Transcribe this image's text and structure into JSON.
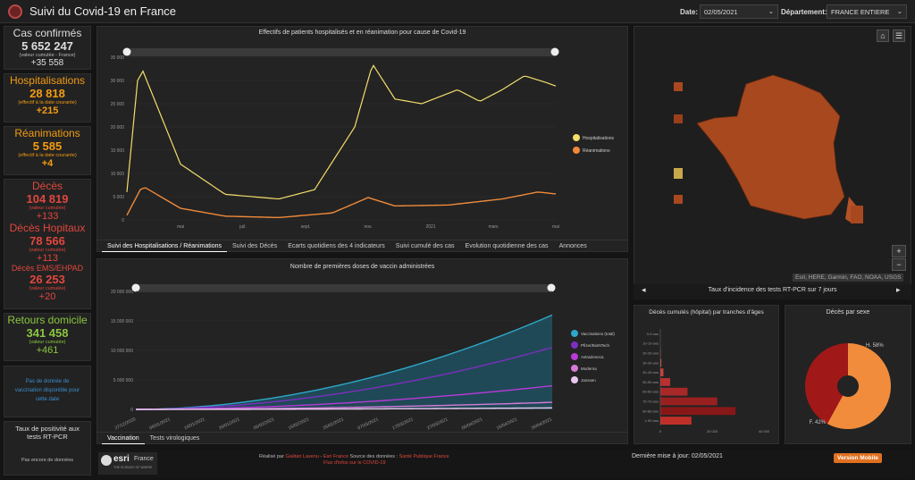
{
  "header": {
    "title": "Suivi du Covid-19 en France",
    "date_label": "Date:",
    "date_value": "02/05/2021",
    "dept_label": "Département:",
    "dept_value": "FRANCE ENTIERE"
  },
  "stats": {
    "cases": {
      "title": "Cas confirmés",
      "value": "5 652 247",
      "note": "(valeur cumulée - France)",
      "delta": "+35 558"
    },
    "hosp": {
      "title": "Hospitalisations",
      "value": "28 818",
      "note": "(effectif à la date courante)",
      "delta": "+215"
    },
    "rea": {
      "title": "Réanimations",
      "value": "5 585",
      "note": "(effectif à la date courante)",
      "delta": "+4"
    },
    "deaths": {
      "title": "Décès",
      "value": "104 819",
      "note": "(valeur cumulée)",
      "delta": "+133",
      "hosp_title": "Décès Hopitaux",
      "hosp_value": "78 566",
      "hosp_note": "(valeur cumulée)",
      "hosp_delta": "+113",
      "ems_title": "Décès EMS/EHPAD",
      "ems_value": "26 253",
      "ems_note": "(valeur cumulée)",
      "ems_delta": "+20"
    },
    "home": {
      "title": "Retours domicile",
      "value": "341 458",
      "note": "(valeur cumulée)",
      "delta": "+461"
    },
    "vacc_note": "Pas de donnée de vaccination disponible pour cette date",
    "posit_title": "Taux de positivité aux tests RT-PCR",
    "posit_note": "Pas encore de données"
  },
  "chart1": {
    "title": "Effectifs de patients hospitalisés et en réanimation pour cause de Covid-19",
    "legend": [
      "Hospitalisations",
      "Réanimations"
    ],
    "colors": [
      "#f4dd6a",
      "#f08a3a"
    ],
    "yticks": [
      "35 000",
      "30 000",
      "25 000",
      "20 000",
      "15 000",
      "10 000",
      "5 000",
      "0"
    ],
    "xticks": [
      "mai",
      "juil.",
      "sept.",
      "nov.",
      "2021",
      "mars",
      "mai"
    ]
  },
  "tabs1": [
    "Suivi des Hospitalisations / Réanimations",
    "Suivi des Décès",
    "Ecarts quotidiens des 4 indicateurs",
    "Suivi cumulé des cas",
    "Evolution quotidienne des cas",
    "Annonces"
  ],
  "chart2": {
    "title": "Nombre de premières doses de vaccin administrées",
    "legend": [
      "Vaccinations (total)",
      "Pfizer/BioNTech",
      "AstraZeneca",
      "Moderna",
      "Janssen"
    ],
    "colors": [
      "#2ea8c8",
      "#7b2fbf",
      "#b83ad8",
      "#d67ad8",
      "#e8c8f0"
    ],
    "yticks": [
      "20 000 000",
      "15 000 000",
      "10 000 000",
      "5 000 000",
      "0"
    ],
    "xticks": [
      "27/12/2020",
      "06/01/2021",
      "16/01/2021",
      "26/01/2021",
      "05/02/2021",
      "15/02/2021",
      "25/02/2021",
      "07/03/2021",
      "17/03/2021",
      "27/03/2021",
      "06/04/2021",
      "16/04/2021",
      "26/04/2021"
    ]
  },
  "tabs2": [
    "Vaccination",
    "Tests virologiques"
  ],
  "map": {
    "attrib": "Esri, HERE, Garmin, FAO, NOAA, USGS",
    "caption": "Taux d'incidence des tests RT-PCR sur 7 jours"
  },
  "age": {
    "title": "Décès cumulés (hôpital) par tranches d'âges",
    "categories": [
      "0-9 ans",
      "10-19 ans",
      "20-29 ans",
      "30-39 ans",
      "40-49 ans",
      "50-59 ans",
      "60-69 ans",
      "70-79 ans",
      "80-89 ans",
      "≥ 90 ans"
    ],
    "values": [
      20,
      30,
      150,
      400,
      1200,
      3800,
      10500,
      22000,
      29000,
      12000
    ],
    "xticks": [
      "0",
      "20 000",
      "40 000"
    ]
  },
  "sex": {
    "title": "Décès par sexe",
    "h_label": "H. 58%",
    "f_label": "F. 42%",
    "h": 58,
    "f": 42
  },
  "footer": {
    "credit1": "Réalisé par",
    "author": "Gaëtan Lavenu",
    "sep": "-",
    "org": "Esri France",
    "source_label": "Source des données :",
    "source": "Santé Publique France",
    "flux": "Flux d'infos sur le COVID-19",
    "update": "Dernière mise à jour: 02/05/2021",
    "mobile": "Version Mobile",
    "esri": "esri",
    "france": "France",
    "tagline": "THE SCIENCE OF WHERE"
  }
}
